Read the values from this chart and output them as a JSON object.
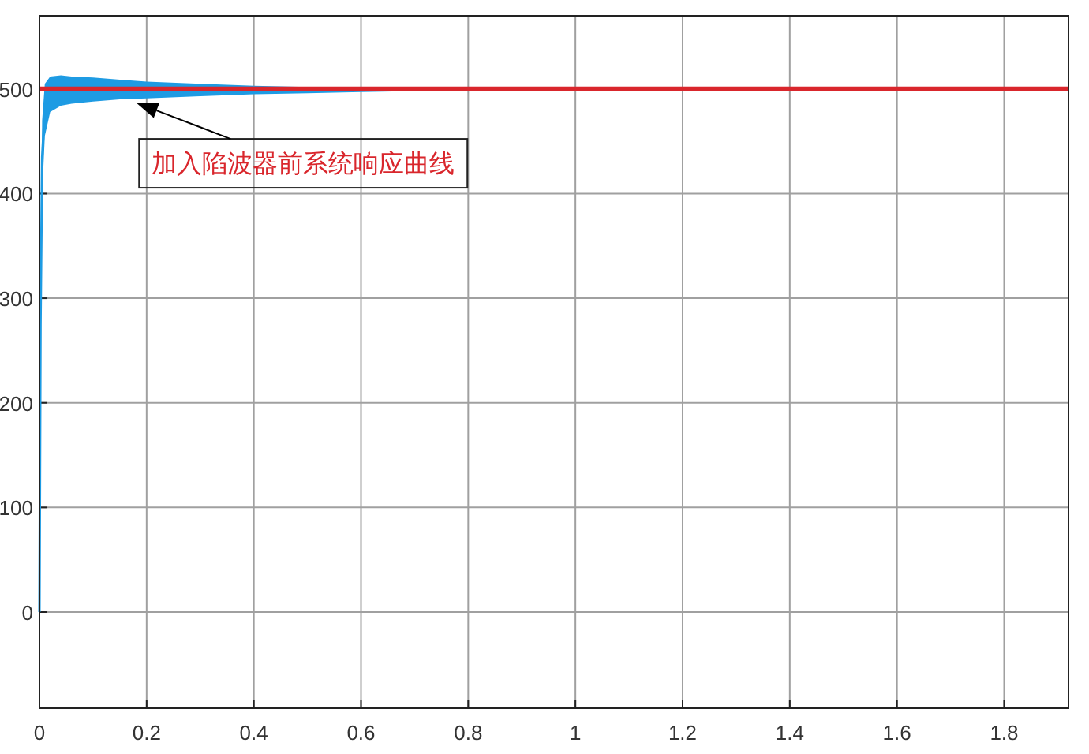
{
  "chart_data": {
    "type": "line",
    "xlim": [
      0,
      1.92
    ],
    "ylim": [
      -92,
      570
    ],
    "xticks": [
      0,
      0.2,
      0.4,
      0.6,
      0.8,
      1,
      1.2,
      1.4,
      1.6,
      1.8
    ],
    "yticks": [
      0,
      100,
      200,
      300,
      400,
      500
    ],
    "grid": true,
    "x": [
      0,
      0.002,
      0.005,
      0.01,
      0.02,
      0.04,
      0.06,
      0.1,
      0.15,
      0.2,
      0.3,
      0.4,
      0.5,
      0.6,
      0.7,
      0.8
    ],
    "series": [
      {
        "color": "#1e9be3",
        "values": [
          0,
          275,
          435,
          480,
          495,
          499,
          499,
          500,
          500,
          499,
          499,
          499,
          499,
          499,
          null,
          null
        ],
        "lower": [
          0,
          250,
          400,
          455,
          478,
          484,
          486,
          488,
          490,
          491,
          493,
          495,
          496,
          497,
          498,
          499
        ],
        "upper": [
          0,
          300,
          470,
          505,
          512,
          513,
          512,
          511,
          509,
          507,
          505,
          503,
          502,
          501,
          500,
          500
        ]
      }
    ],
    "ref_lines": [
      {
        "axis": "y",
        "value": 500,
        "color": "#d9262c"
      }
    ],
    "annotations": [
      {
        "text": "加入陷波器前系统响应曲线",
        "x": 0.18,
        "y": 487
      }
    ]
  }
}
